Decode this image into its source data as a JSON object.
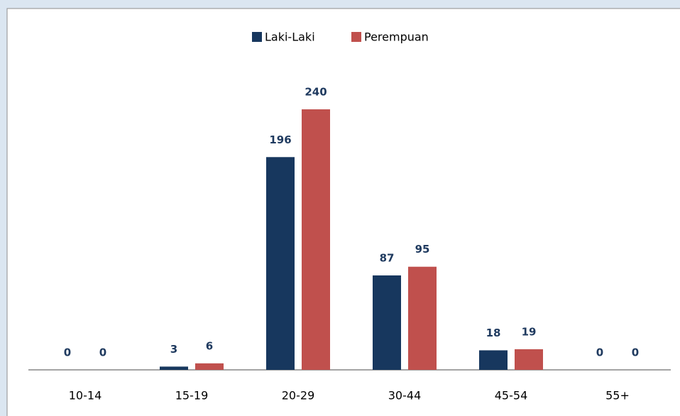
{
  "chart_data": {
    "type": "bar",
    "categories": [
      "10-14",
      "15-19",
      "20-29",
      "30-44",
      "45-54",
      "55+"
    ],
    "series": [
      {
        "name": "Laki-Laki",
        "color": "#17375e",
        "values": [
          0,
          3,
          196,
          87,
          18,
          0
        ]
      },
      {
        "name": "Perempuan",
        "color": "#c0504d",
        "values": [
          0,
          6,
          240,
          95,
          19,
          0
        ]
      }
    ]
  }
}
